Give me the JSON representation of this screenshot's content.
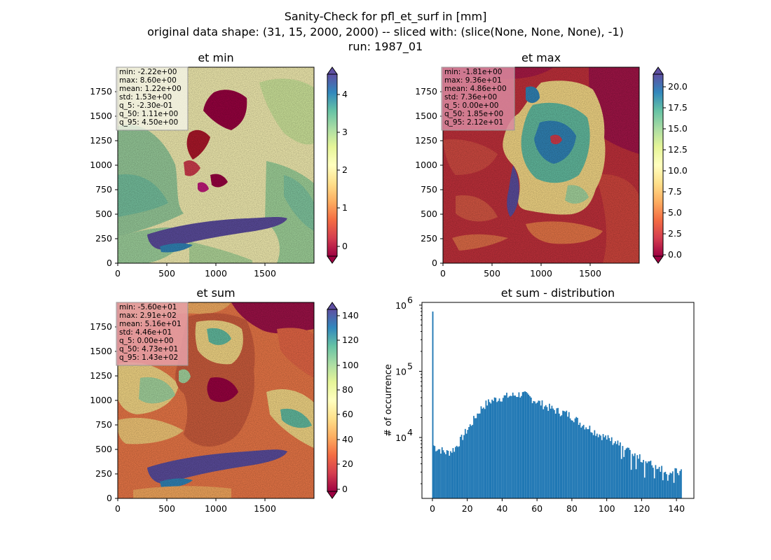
{
  "suptitle": [
    "Sanity-Check for pfl_et_surf in [mm]",
    "original data shape: (31, 15, 2000, 2000) -- sliced with: (slice(None, None, None), -1)",
    "run: 1987_01"
  ],
  "colormap": "Spectral",
  "chart_data": [
    {
      "type": "heatmap",
      "title": "et min",
      "xlim": [
        0,
        2000
      ],
      "ylim": [
        0,
        2000
      ],
      "xticks": [
        "0",
        "500",
        "1000",
        "1500"
      ],
      "yticks": [
        "0",
        "250",
        "500",
        "750",
        "1000",
        "1250",
        "1500",
        "1750"
      ],
      "colorbar": {
        "range": [
          -0.35,
          4.6
        ],
        "extend": "both",
        "ticks": [
          "0",
          "1",
          "2",
          "3",
          "4"
        ]
      },
      "stats": [
        "min: -2.22e+00",
        "max: 8.60e+00",
        "mean: 1.22e+00",
        "std: 1.53e+00",
        "q_5: -2.30e-01",
        "q_50: 1.11e+00",
        "q_95: 4.50e+00"
      ],
      "stats_box_color": "#f5f5e8"
    },
    {
      "type": "heatmap",
      "title": "et max",
      "xlim": [
        0,
        2000
      ],
      "ylim": [
        0,
        2000
      ],
      "xticks": [
        "0",
        "500",
        "1000",
        "1500"
      ],
      "yticks": [
        "0",
        "250",
        "500",
        "750",
        "1000",
        "1250",
        "1500",
        "1750"
      ],
      "colorbar": {
        "range": [
          0,
          21.6
        ],
        "extend": "both",
        "ticks": [
          "0.0",
          "2.5",
          "5.0",
          "7.5",
          "10.0",
          "12.5",
          "15.0",
          "17.5",
          "20.0"
        ]
      },
      "stats": [
        "min: -1.81e+00",
        "max: 9.36e+01",
        "mean: 4.86e+00",
        "std: 7.36e+00",
        "q_5: 0.00e+00",
        "q_50: 1.85e+00",
        "q_95: 2.12e+01"
      ],
      "stats_box_color": "#d98aa0"
    },
    {
      "type": "heatmap",
      "title": "et sum",
      "xlim": [
        0,
        2000
      ],
      "ylim": [
        0,
        2000
      ],
      "xticks": [
        "0",
        "500",
        "1000",
        "1500"
      ],
      "yticks": [
        "0",
        "250",
        "500",
        "750",
        "1000",
        "1250",
        "1500",
        "1750"
      ],
      "colorbar": {
        "range": [
          -4,
          147
        ],
        "extend": "both",
        "ticks": [
          "0",
          "20",
          "40",
          "60",
          "80",
          "100",
          "120",
          "140"
        ]
      },
      "stats": [
        "min: -5.60e+01",
        "max: 2.91e+02",
        "mean: 5.16e+01",
        "std: 4.46e+01",
        "q_5: 0.00e+00",
        "q_50: 4.73e+01",
        "q_95: 1.43e+02"
      ],
      "stats_box_color": "#e6a0a8"
    },
    {
      "type": "bar",
      "title": "et sum - distribution",
      "xlabel": "",
      "ylabel": "# of occurrence",
      "yscale": "log",
      "xlim": [
        -6,
        150
      ],
      "ylim": [
        1200,
        1100000
      ],
      "xticks": [
        0,
        20,
        40,
        60,
        80,
        100,
        120,
        140
      ],
      "yticks": [
        {
          "value": 10000,
          "base": "10",
          "exp": "4"
        },
        {
          "value": 100000,
          "base": "10",
          "exp": "5"
        },
        {
          "value": 1000000,
          "base": "10",
          "exp": "6"
        }
      ],
      "bar_color": "#1f77b4",
      "spike": {
        "x": 0,
        "value": 800000
      },
      "bin_start": 0.3,
      "bin_width": 0.7,
      "profile": [
        [
          0.3,
          7800
        ],
        [
          2,
          7000
        ],
        [
          5,
          6500
        ],
        [
          8,
          5900
        ],
        [
          10,
          6100
        ],
        [
          13,
          6900
        ],
        [
          16,
          9000
        ],
        [
          19,
          12000
        ],
        [
          22,
          15500
        ],
        [
          25,
          21000
        ],
        [
          28,
          27500
        ],
        [
          31,
          32500
        ],
        [
          34,
          36000
        ],
        [
          37,
          38500
        ],
        [
          40,
          40500
        ],
        [
          44,
          42500
        ],
        [
          48,
          44000
        ],
        [
          51,
          45500
        ],
        [
          54,
          43000
        ],
        [
          57,
          39000
        ],
        [
          60,
          35000
        ],
        [
          64,
          31000
        ],
        [
          68,
          27500
        ],
        [
          72,
          25000
        ],
        [
          76,
          23500
        ],
        [
          80,
          21000
        ],
        [
          85,
          16500
        ],
        [
          90,
          14000
        ],
        [
          95,
          11500
        ],
        [
          100,
          9800
        ],
        [
          105,
          8500
        ],
        [
          110,
          6800
        ],
        [
          115,
          5500
        ],
        [
          120,
          4700
        ],
        [
          125,
          4000
        ],
        [
          130,
          3600
        ],
        [
          135,
          3200
        ],
        [
          140,
          3000
        ],
        [
          142.8,
          2900
        ]
      ]
    }
  ]
}
